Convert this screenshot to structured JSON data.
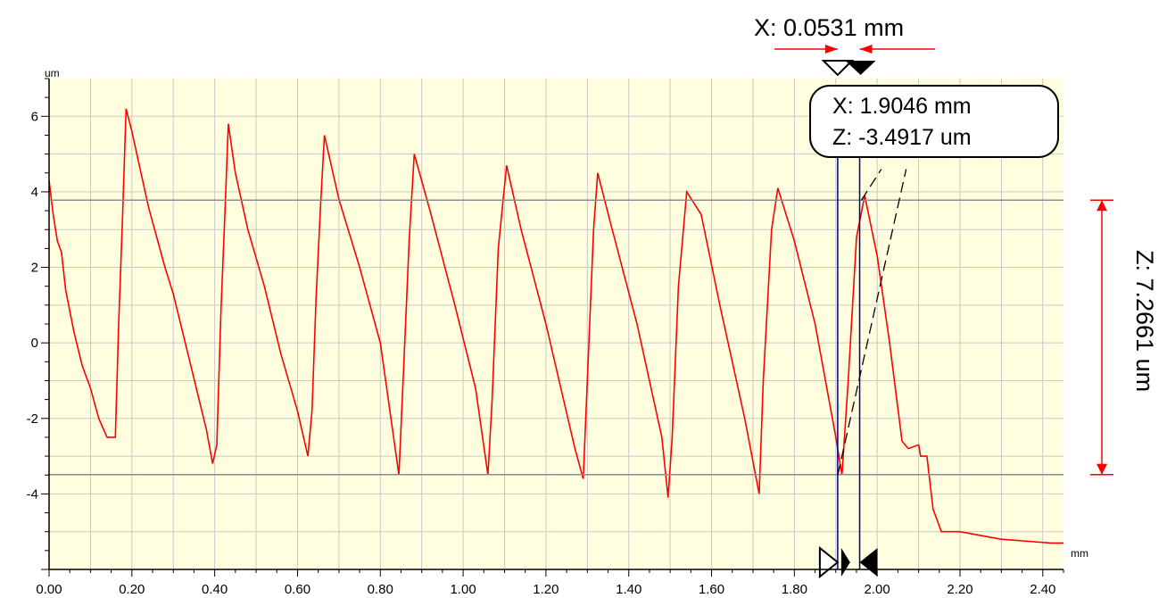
{
  "chart_data": {
    "type": "line",
    "title": "",
    "xlabel": "mm",
    "ylabel": "um",
    "xlim": [
      0,
      2.45
    ],
    "ylim": [
      -6,
      7
    ],
    "grid": true,
    "x_ticks": [
      "0.00",
      "0.20",
      "0.40",
      "0.60",
      "0.80",
      "1.00",
      "1.20",
      "1.40",
      "1.60",
      "1.80",
      "2.00",
      "2.20",
      "2.40"
    ],
    "y_ticks": [
      "6",
      "4",
      "2",
      "0",
      "-2",
      "-4"
    ],
    "series": [
      {
        "color": "#ff0000",
        "points": [
          [
            0.0,
            4.3
          ],
          [
            0.01,
            3.4
          ],
          [
            0.02,
            2.7
          ],
          [
            0.03,
            2.4
          ],
          [
            0.04,
            1.4
          ],
          [
            0.06,
            0.3
          ],
          [
            0.08,
            -0.6
          ],
          [
            0.1,
            -1.2
          ],
          [
            0.12,
            -2.0
          ],
          [
            0.14,
            -2.5
          ],
          [
            0.16,
            -2.5
          ],
          [
            0.168,
            0.5
          ],
          [
            0.178,
            3.5
          ],
          [
            0.186,
            6.2
          ],
          [
            0.2,
            5.6
          ],
          [
            0.24,
            3.6
          ],
          [
            0.28,
            2.0
          ],
          [
            0.3,
            1.3
          ],
          [
            0.34,
            -0.5
          ],
          [
            0.38,
            -2.3
          ],
          [
            0.395,
            -3.2
          ],
          [
            0.405,
            -2.7
          ],
          [
            0.415,
            0.8
          ],
          [
            0.425,
            3.5
          ],
          [
            0.433,
            5.8
          ],
          [
            0.45,
            4.5
          ],
          [
            0.48,
            3.0
          ],
          [
            0.52,
            1.5
          ],
          [
            0.56,
            -0.3
          ],
          [
            0.6,
            -1.8
          ],
          [
            0.625,
            -3.0
          ],
          [
            0.635,
            -1.8
          ],
          [
            0.645,
            1.2
          ],
          [
            0.655,
            3.5
          ],
          [
            0.665,
            5.5
          ],
          [
            0.7,
            3.8
          ],
          [
            0.75,
            2.0
          ],
          [
            0.8,
            0.0
          ],
          [
            0.845,
            -3.5
          ],
          [
            0.855,
            -1.0
          ],
          [
            0.87,
            2.8
          ],
          [
            0.882,
            5.0
          ],
          [
            0.92,
            3.5
          ],
          [
            0.98,
            1.0
          ],
          [
            1.03,
            -1.2
          ],
          [
            1.06,
            -3.5
          ],
          [
            1.07,
            -1.5
          ],
          [
            1.085,
            2.5
          ],
          [
            1.105,
            4.7
          ],
          [
            1.14,
            3.0
          ],
          [
            1.2,
            0.5
          ],
          [
            1.27,
            -2.8
          ],
          [
            1.29,
            -3.6
          ],
          [
            1.3,
            -1.0
          ],
          [
            1.315,
            3.0
          ],
          [
            1.325,
            4.5
          ],
          [
            1.36,
            3.0
          ],
          [
            1.42,
            0.5
          ],
          [
            1.48,
            -2.5
          ],
          [
            1.495,
            -4.1
          ],
          [
            1.505,
            -2.5
          ],
          [
            1.52,
            1.5
          ],
          [
            1.54,
            4.0
          ],
          [
            1.575,
            3.4
          ],
          [
            1.62,
            1.0
          ],
          [
            1.68,
            -2.0
          ],
          [
            1.715,
            -4.0
          ],
          [
            1.725,
            -1.0
          ],
          [
            1.745,
            3.0
          ],
          [
            1.76,
            4.1
          ],
          [
            1.8,
            2.7
          ],
          [
            1.85,
            0.5
          ],
          [
            1.9,
            -2.5
          ],
          [
            1.915,
            -3.5
          ],
          [
            1.93,
            -1.0
          ],
          [
            1.95,
            2.8
          ],
          [
            1.97,
            3.9
          ],
          [
            2.0,
            2.3
          ],
          [
            2.03,
            0.0
          ],
          [
            2.06,
            -2.6
          ],
          [
            2.075,
            -2.8
          ],
          [
            2.1,
            -2.7
          ],
          [
            2.105,
            -3.0
          ],
          [
            2.12,
            -3.0
          ],
          [
            2.135,
            -4.4
          ],
          [
            2.155,
            -5.0
          ],
          [
            2.2,
            -5.0
          ],
          [
            2.3,
            -5.2
          ],
          [
            2.42,
            -5.3
          ],
          [
            2.45,
            -5.3
          ]
        ]
      }
    ],
    "reference_lines_y": [
      3.78,
      -3.49
    ],
    "cursors_x": [
      1.9046,
      1.9577
    ],
    "dashed_segments": [
      {
        "from": [
          1.905,
          -3.49
        ],
        "to": [
          2.07,
          4.6
        ]
      },
      {
        "from": [
          1.962,
          3.78
        ],
        "to": [
          2.01,
          4.6
        ]
      }
    ],
    "annotations": {
      "delta_x": "X: 0.0531 mm",
      "delta_z": "Z: 7.2661 um",
      "point_x": "X: 1.9046 mm",
      "point_z": "Z: -3.4917 um"
    }
  }
}
